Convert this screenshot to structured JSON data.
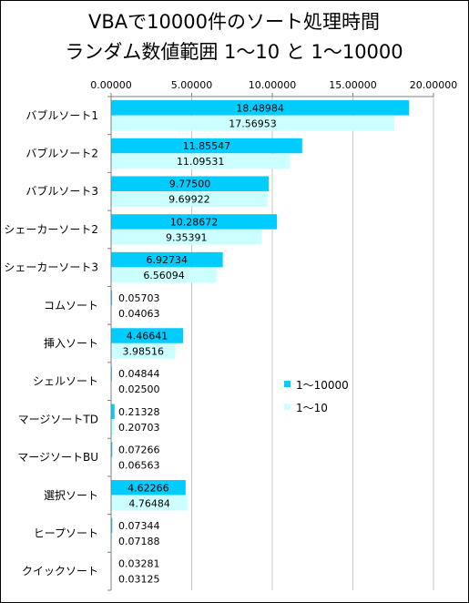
{
  "chart_data": {
    "type": "bar",
    "orientation": "horizontal",
    "title_line1": "VBAで10000件のソート処理時間",
    "title_line2": "ランダム数値範囲 1～10 と 1～10000",
    "xlim": [
      0,
      20
    ],
    "x_ticks": [
      "0.00000",
      "5.00000",
      "10.00000",
      "15.00000",
      "20.00000"
    ],
    "x_axis_position": "top",
    "grid": true,
    "legend_position": "right",
    "categories": [
      "バブルソート1",
      "バブルソート2",
      "バブルソート3",
      "シェーカーソート2",
      "シェーカーソート3",
      "コムソート",
      "挿入ソート",
      "シェルソート",
      "マージソートTD",
      "マージソートBU",
      "選択ソート",
      "ヒープソート",
      "クイックソート"
    ],
    "series": [
      {
        "name": "1～10000",
        "color": "#00ccff",
        "values": [
          18.48984,
          11.85547,
          9.775,
          10.28672,
          6.92734,
          0.05703,
          4.46641,
          0.04844,
          0.21328,
          0.07266,
          4.62266,
          0.07344,
          0.03281
        ],
        "labels": [
          "18.48984",
          "11.85547",
          "9.77500",
          "10.28672",
          "6.92734",
          "0.05703",
          "4.46641",
          "0.04844",
          "0.21328",
          "0.07266",
          "4.62266",
          "0.07344",
          "0.03281"
        ]
      },
      {
        "name": "1～10",
        "color": "#ccffff",
        "values": [
          17.56953,
          11.09531,
          9.69922,
          9.35391,
          6.56094,
          0.04063,
          3.98516,
          0.025,
          0.20703,
          0.06563,
          4.76484,
          0.07188,
          0.03125
        ],
        "labels": [
          "17.56953",
          "11.09531",
          "9.69922",
          "9.35391",
          "6.56094",
          "0.04063",
          "3.98516",
          "0.02500",
          "0.20703",
          "0.06563",
          "4.76484",
          "0.07188",
          "0.03125"
        ]
      }
    ]
  }
}
